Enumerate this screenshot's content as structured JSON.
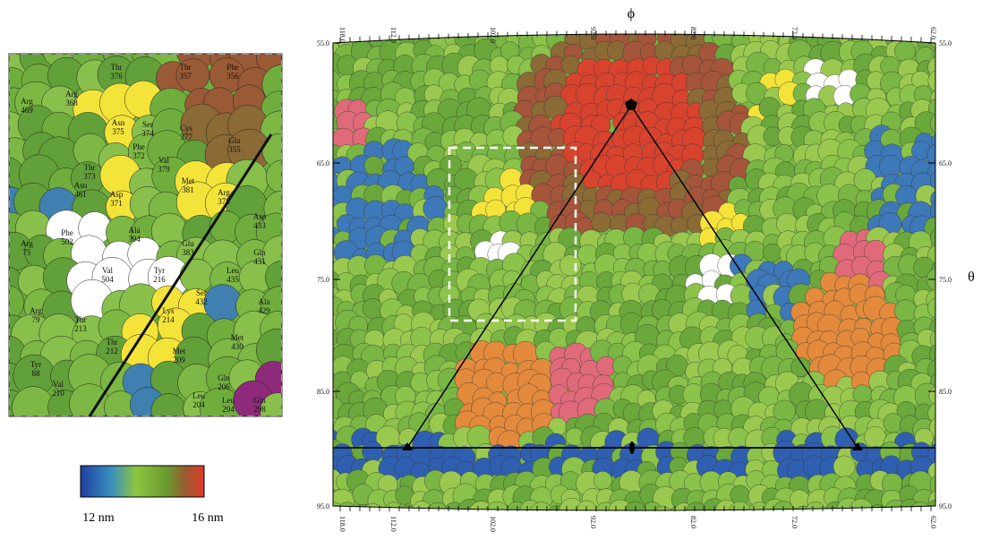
{
  "left_panel": {
    "residues": [
      {
        "name": "Thr",
        "number": "376"
      },
      {
        "name": "Thr",
        "number": "357"
      },
      {
        "name": "Phe",
        "number": "356"
      },
      {
        "name": "Arg",
        "number": "368"
      },
      {
        "name": "Asn",
        "number": "375"
      },
      {
        "name": "Arg",
        "number": "469"
      },
      {
        "name": "Ser",
        "number": "374"
      },
      {
        "name": "Cys",
        "number": "377"
      },
      {
        "name": "Glu",
        "number": "355"
      },
      {
        "name": "Thr",
        "number": "373"
      },
      {
        "name": "Phe",
        "number": "372"
      },
      {
        "name": "Val",
        "number": "379"
      },
      {
        "name": "Asn",
        "number": "461"
      },
      {
        "name": "Met",
        "number": "381"
      },
      {
        "name": "Asp",
        "number": "371"
      },
      {
        "name": "Arg",
        "number": "378"
      },
      {
        "name": "Asp",
        "number": "433"
      },
      {
        "name": "Phe",
        "number": "502"
      },
      {
        "name": "Ala",
        "number": "394"
      },
      {
        "name": "Glu",
        "number": "383"
      },
      {
        "name": "Arg",
        "number": "75"
      },
      {
        "name": "Val",
        "number": "504"
      },
      {
        "name": "Tyr",
        "number": "216"
      },
      {
        "name": "Leu",
        "number": "435"
      },
      {
        "name": "Gln",
        "number": "431"
      },
      {
        "name": "Ser",
        "number": "432"
      },
      {
        "name": "Lys",
        "number": "214"
      },
      {
        "name": "Ala",
        "number": "429"
      },
      {
        "name": "Arg",
        "number": "79"
      },
      {
        "name": "Thr",
        "number": "213"
      },
      {
        "name": "Thr",
        "number": "212"
      },
      {
        "name": "Met",
        "number": "430"
      },
      {
        "name": "Met",
        "number": "209"
      },
      {
        "name": "Tyr",
        "number": "88"
      },
      {
        "name": "Val",
        "number": "210"
      },
      {
        "name": "Gln",
        "number": "206"
      },
      {
        "name": "Leu",
        "number": "204"
      },
      {
        "name": "Leu",
        "number": "294"
      },
      {
        "name": "Gln",
        "number": "298"
      }
    ]
  },
  "colorbar": {
    "min_label": "12 nm",
    "max_label": "16 nm"
  },
  "right_panel": {
    "phi_label": "ϕ",
    "theta_label": "θ",
    "phi_ticks": [
      "118.0",
      "112.0",
      "102.0",
      "92.0",
      "82.0",
      "72.0",
      "62.0"
    ],
    "theta_ticks": [
      "55.0",
      "65.0",
      "75.0",
      "85.0",
      "95.0"
    ]
  }
}
